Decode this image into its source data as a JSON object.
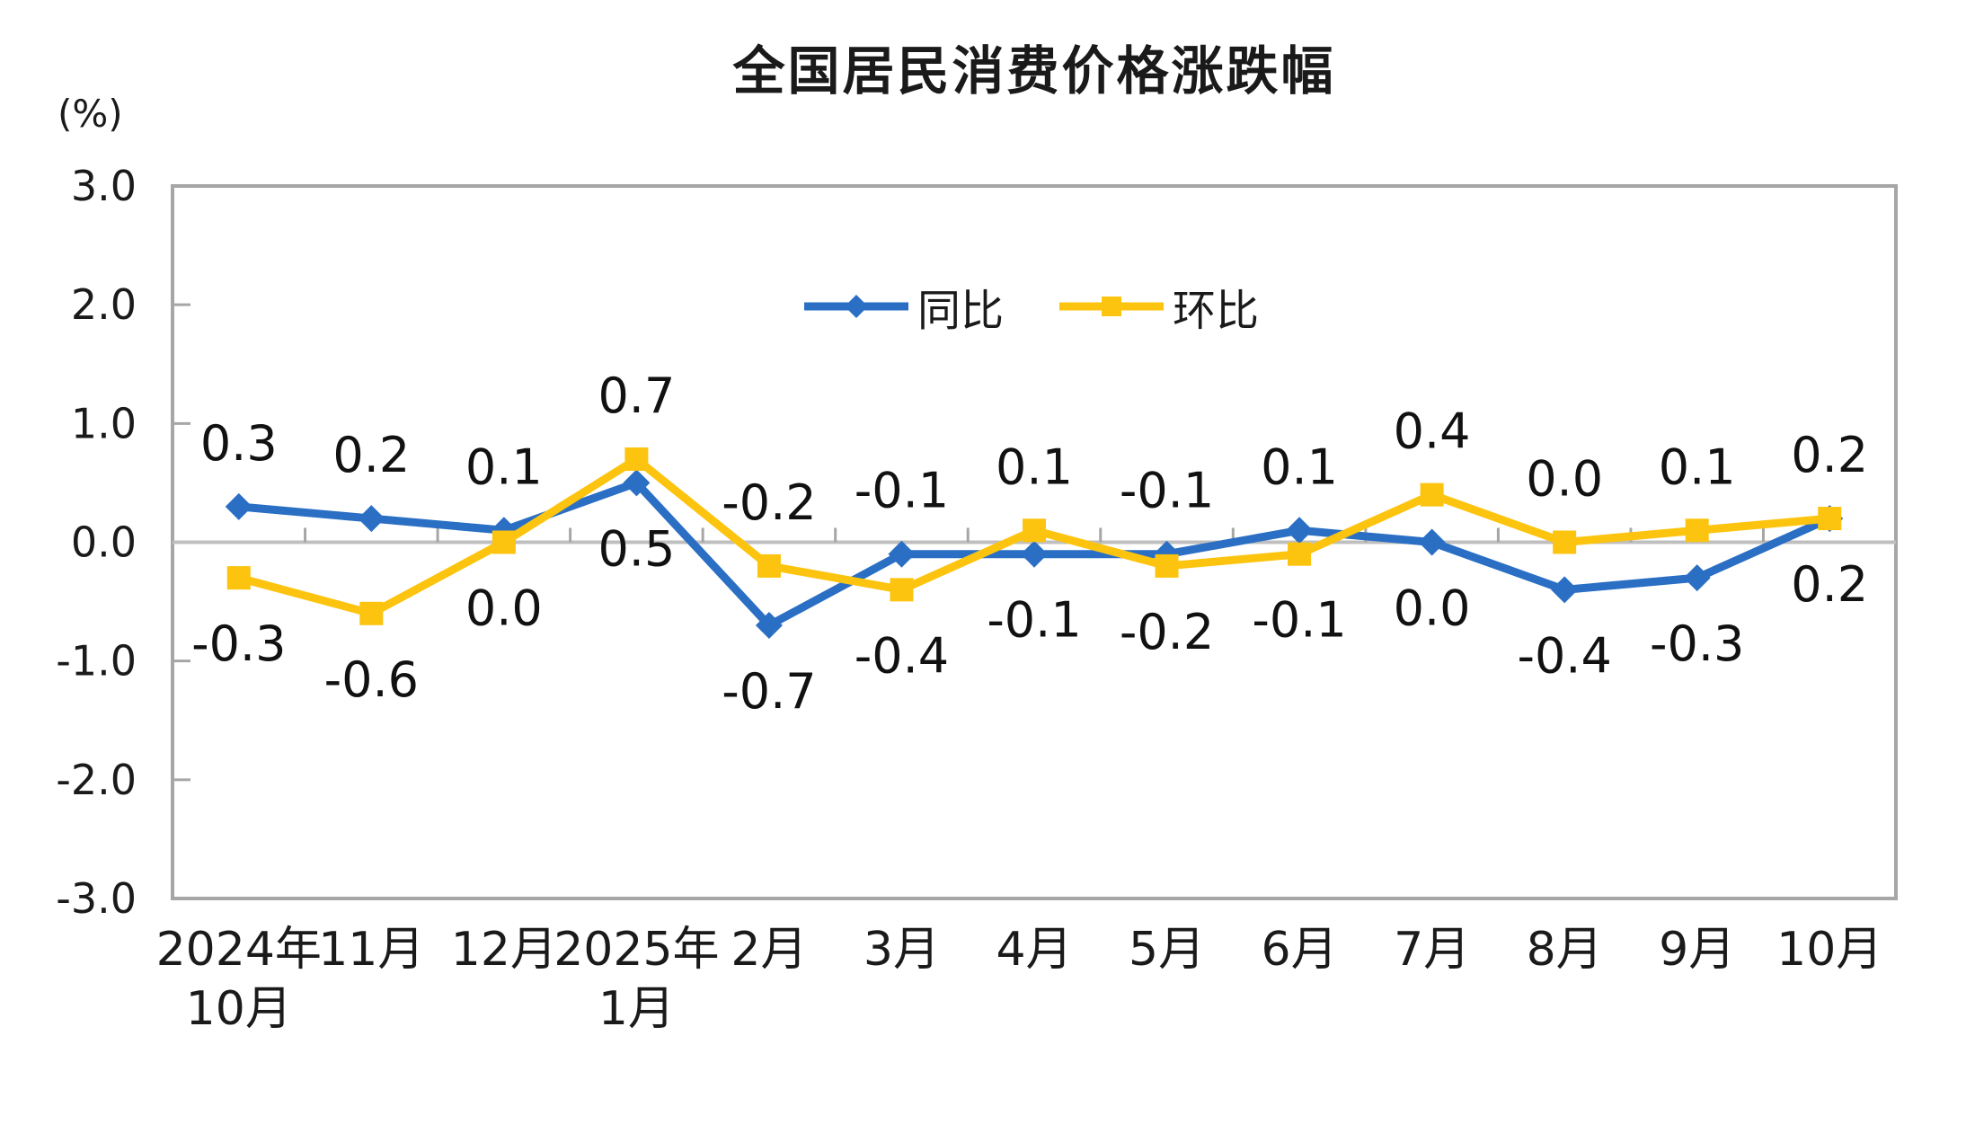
{
  "chart_data": {
    "type": "line",
    "title": "全国居民消费价格涨跌幅",
    "ylabel": "(%)",
    "xlabel": "",
    "ylim": [
      -3.0,
      3.0
    ],
    "y_tick_labels": [
      "3.0",
      "2.0",
      "1.0",
      "0.0",
      "-1.0",
      "-2.0",
      "-3.0"
    ],
    "grid": "zero-line-only",
    "legend_position": "inside-top-center",
    "categories": [
      "2024年10月",
      "11月",
      "12月",
      "2025年1月",
      "2月",
      "3月",
      "4月",
      "5月",
      "6月",
      "7月",
      "8月",
      "9月",
      "10月"
    ],
    "category_lines": [
      [
        "2024年",
        "10月"
      ],
      [
        "11月"
      ],
      [
        "12月"
      ],
      [
        "2025年",
        "1月"
      ],
      [
        "2月"
      ],
      [
        "3月"
      ],
      [
        "4月"
      ],
      [
        "5月"
      ],
      [
        "6月"
      ],
      [
        "7月"
      ],
      [
        "8月"
      ],
      [
        "9月"
      ],
      [
        "10月"
      ]
    ],
    "series": [
      {
        "name": "同比",
        "color": "#2A6FC4",
        "marker": "diamond",
        "values": [
          0.3,
          0.2,
          0.1,
          0.5,
          -0.7,
          -0.1,
          -0.1,
          -0.1,
          0.1,
          0.0,
          -0.4,
          -0.3,
          0.2
        ],
        "data_labels": [
          "0.3",
          "0.2",
          "0.1",
          "0.5",
          "-0.7",
          "-0.1",
          "-0.1",
          "-0.1",
          "0.1",
          "0.0",
          "-0.4",
          "-0.3",
          "0.2"
        ],
        "label_side": [
          "above",
          "above",
          "above",
          "below",
          "below",
          "above",
          "below",
          "above",
          "above",
          "below",
          "below",
          "below",
          "below"
        ]
      },
      {
        "name": "环比",
        "color": "#FCC40E",
        "marker": "square",
        "values": [
          -0.3,
          -0.6,
          0.0,
          0.7,
          -0.2,
          -0.4,
          0.1,
          -0.2,
          -0.1,
          0.4,
          0.0,
          0.1,
          0.2
        ],
        "data_labels": [
          "-0.3",
          "-0.6",
          "0.0",
          "0.7",
          "-0.2",
          "-0.4",
          "0.1",
          "-0.2",
          "-0.1",
          "0.4",
          "0.0",
          "0.1",
          "0.2"
        ],
        "label_side": [
          "below",
          "below",
          "below",
          "above",
          "above",
          "below",
          "above",
          "below",
          "below",
          "above",
          "above",
          "above",
          "above"
        ]
      }
    ],
    "colors": {
      "axis_frame": "#A6A6A6",
      "zero_line": "#BFBFBF",
      "text": "#1A1A1A"
    }
  }
}
